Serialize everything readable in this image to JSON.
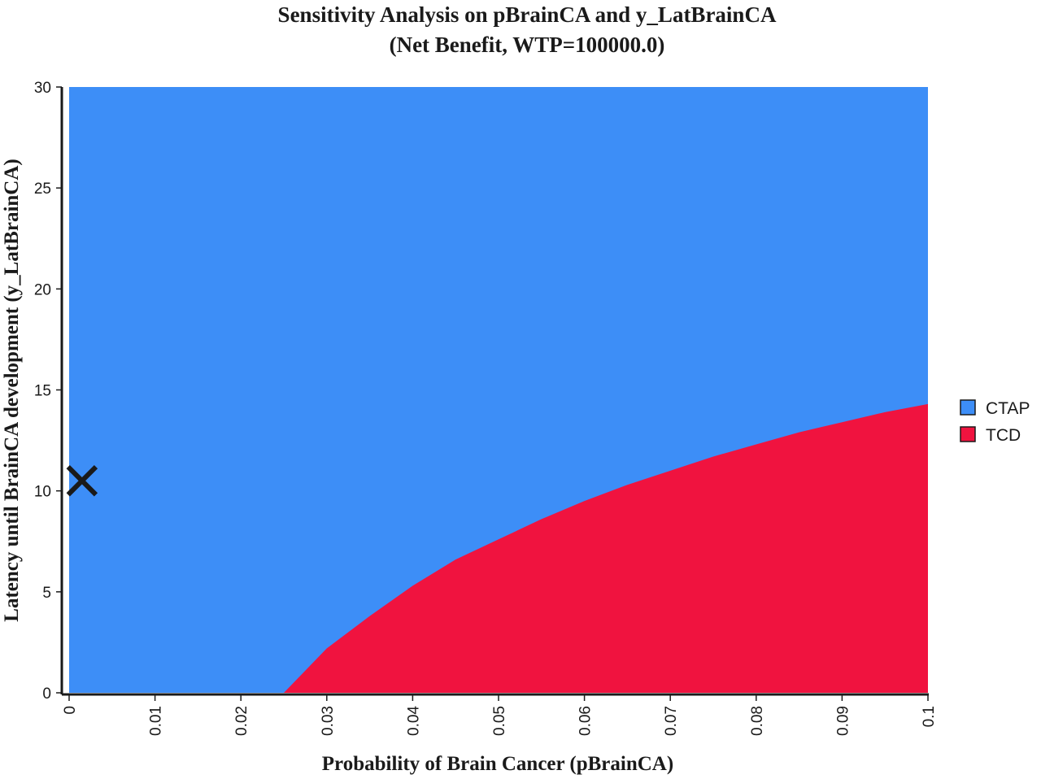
{
  "chart_data": {
    "type": "area",
    "title": "Sensitivity Analysis on pBrainCA and y_LatBrainCA",
    "subtitle": "(Net Benefit, WTP=100000.0)",
    "xlabel": "Probability of Brain Cancer (pBrainCA)",
    "ylabel": "Latency until BrainCA development (y_LatBrainCA)",
    "xlim": [
      0,
      0.1
    ],
    "ylim": [
      0,
      30
    ],
    "x_ticks": [
      0,
      0.01,
      0.02,
      0.03,
      0.04,
      0.05,
      0.06,
      0.07,
      0.08,
      0.09,
      0.1
    ],
    "x_tick_labels": [
      "0",
      "0.01",
      "0.02",
      "0.03",
      "0.04",
      "0.05",
      "0.06",
      "0.07",
      "0.08",
      "0.09",
      "0.1"
    ],
    "y_ticks": [
      0,
      5,
      10,
      15,
      20,
      25,
      30
    ],
    "y_tick_labels": [
      "0",
      "5",
      "10",
      "15",
      "20",
      "25",
      "30"
    ],
    "grid": false,
    "legend_position": "right",
    "series": [
      {
        "name": "CTAP",
        "color": "#3d8ef7",
        "region": "above boundary"
      },
      {
        "name": "TCD",
        "color": "#f0133f",
        "region": "below boundary"
      }
    ],
    "boundary": {
      "x": [
        0.025,
        0.03,
        0.035,
        0.04,
        0.045,
        0.05,
        0.055,
        0.06,
        0.065,
        0.07,
        0.075,
        0.08,
        0.085,
        0.09,
        0.095,
        0.1
      ],
      "y": [
        0,
        2.2,
        3.8,
        5.3,
        6.6,
        7.6,
        8.6,
        9.5,
        10.3,
        11.0,
        11.7,
        12.3,
        12.9,
        13.4,
        13.9,
        14.3
      ]
    },
    "markers": [
      {
        "symbol": "x",
        "x": 0.0015,
        "y": 10.5,
        "color": "#1a1a1a"
      }
    ]
  }
}
